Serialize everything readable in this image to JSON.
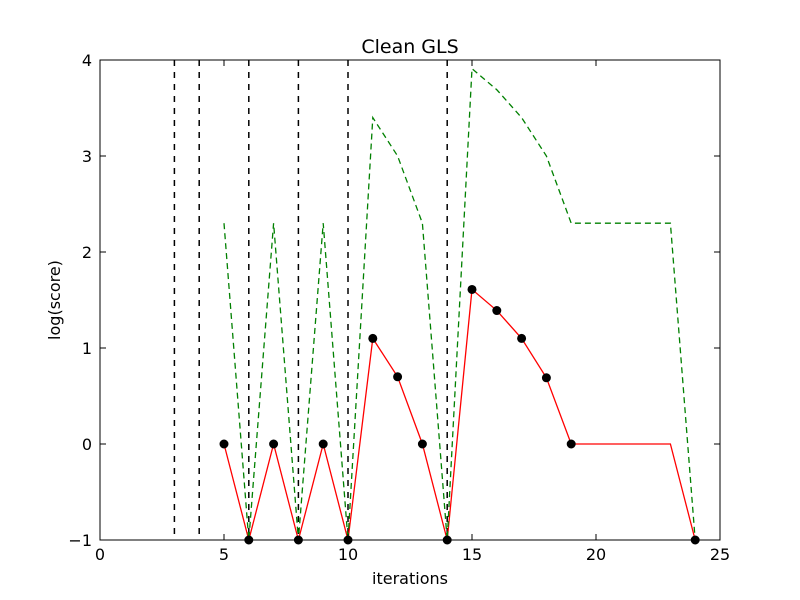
{
  "chart_data": {
    "type": "line",
    "title": "Clean GLS",
    "xlabel": "iterations",
    "ylabel": "log(score)",
    "xlim": [
      0,
      25
    ],
    "ylim": [
      -1,
      4
    ],
    "xticks": [
      0,
      5,
      10,
      15,
      20,
      25
    ],
    "yticks": [
      -1,
      0,
      1,
      2,
      3,
      4
    ],
    "xtick_labels": [
      "0",
      "5",
      "10",
      "15",
      "20",
      "25"
    ],
    "ytick_labels": [
      "−1",
      "0",
      "1",
      "2",
      "3",
      "4"
    ],
    "grid": false,
    "legend": "none",
    "vertical_lines": {
      "x": [
        3,
        4,
        6,
        8,
        10,
        14
      ],
      "color": "#000000",
      "style": "dashed"
    },
    "series": [
      {
        "color": "#ff0000",
        "style": "solid",
        "marker": "circle",
        "marker_color": "#000000",
        "x": [
          5,
          6,
          7,
          8,
          9,
          10,
          11,
          12,
          13,
          14,
          15,
          16,
          17,
          18,
          19,
          23,
          24
        ],
        "y": [
          0,
          -1,
          0,
          -1,
          0,
          -1,
          1.1,
          0.7,
          0,
          -1,
          1.61,
          1.39,
          1.1,
          0.69,
          0,
          0,
          -1
        ],
        "marker_x": [
          5,
          6,
          7,
          8,
          9,
          10,
          11,
          12,
          13,
          14,
          15,
          16,
          17,
          18,
          19,
          24
        ]
      },
      {
        "color": "#008000",
        "style": "dashed",
        "marker": "none",
        "x": [
          5,
          6,
          7,
          8,
          9,
          10,
          11,
          12,
          13,
          14,
          15,
          16,
          17,
          18,
          19,
          23,
          24
        ],
        "y": [
          2.3,
          -1,
          2.3,
          -1,
          2.3,
          -1,
          3.4,
          3.0,
          2.3,
          -1,
          3.91,
          3.69,
          3.4,
          3.0,
          2.3,
          2.3,
          -1
        ]
      }
    ]
  }
}
